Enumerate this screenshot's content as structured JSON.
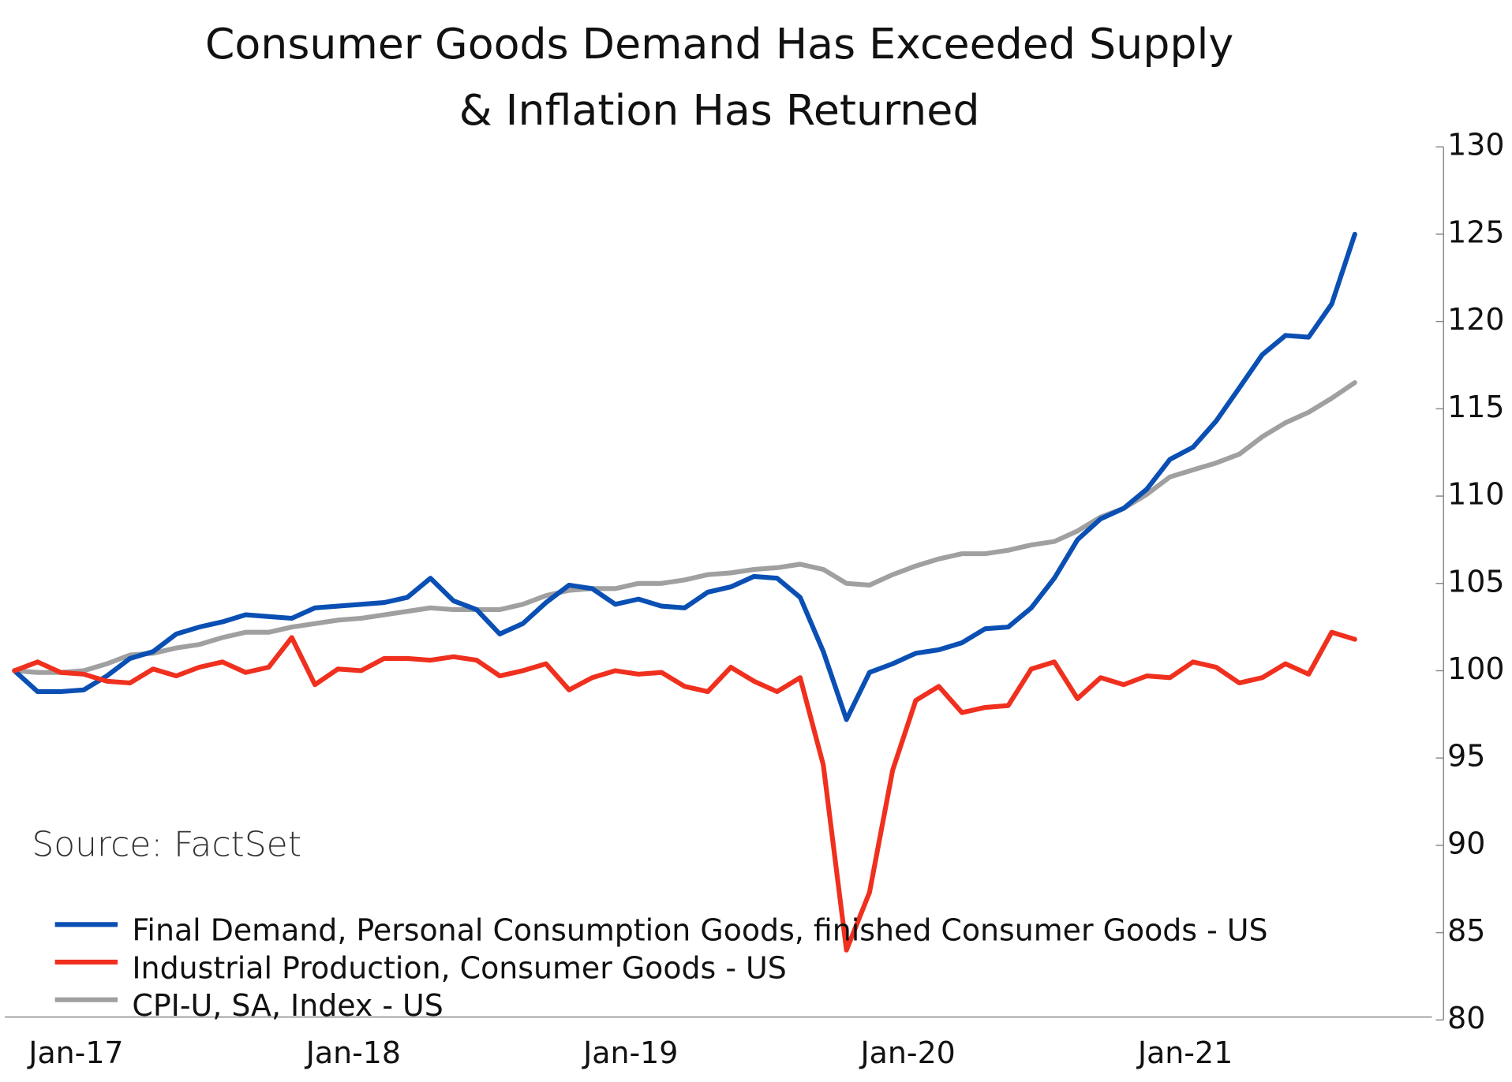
{
  "chart_data": {
    "type": "line",
    "title": [
      "Consumer Goods Demand Has Exceeded Supply",
      "& Inflation Has Returned"
    ],
    "source": "Source: FactSet",
    "categories": [
      null,
      null,
      null,
      "Jan-17",
      null,
      null,
      null,
      null,
      null,
      null,
      null,
      null,
      null,
      null,
      null,
      "Jan-18",
      null,
      null,
      null,
      null,
      null,
      null,
      null,
      null,
      null,
      null,
      null,
      "Jan-19",
      null,
      null,
      null,
      null,
      null,
      null,
      null,
      null,
      null,
      null,
      null,
      "Jan-20",
      null,
      null,
      null,
      null,
      null,
      null,
      null,
      null,
      null,
      null,
      null,
      "Jan-21",
      null,
      null,
      null,
      null,
      null,
      null,
      null
    ],
    "series": [
      {
        "name": "Final Demand, Personal Consumption Goods, finished Consumer Goods - US",
        "color": "#0a4fb3",
        "values": [
          100,
          98.8,
          98.8,
          98.9,
          99.7,
          100.7,
          101.1,
          102.1,
          102.5,
          102.8,
          103.2,
          103.1,
          103,
          103.6,
          103.7,
          103.8,
          103.9,
          104.2,
          105.3,
          104,
          103.5,
          102.1,
          102.7,
          103.9,
          104.9,
          104.7,
          103.8,
          104.1,
          103.7,
          103.6,
          104.5,
          104.8,
          105.4,
          105.3,
          104.2,
          101.1,
          97.2,
          99.9,
          100.4,
          101,
          101.2,
          101.6,
          102.4,
          102.5,
          103.6,
          105.3,
          107.5,
          108.7,
          109.3,
          110.4,
          112.1,
          112.8,
          114.3,
          116.2,
          118.1,
          119.2,
          119.1,
          121,
          125
        ]
      },
      {
        "name": "Industrial Production, Consumer Goods - US",
        "color": "#f0301e",
        "values": [
          100,
          100.5,
          99.9,
          99.8,
          99.4,
          99.3,
          100.1,
          99.7,
          100.2,
          100.5,
          99.9,
          100.2,
          101.9,
          99.2,
          100.1,
          100,
          100.7,
          100.7,
          100.6,
          100.8,
          100.6,
          99.7,
          100,
          100.4,
          98.9,
          99.6,
          100,
          99.8,
          99.9,
          99.1,
          98.8,
          100.2,
          99.4,
          98.8,
          99.6,
          94.6,
          84,
          87.3,
          94.3,
          98.3,
          99.1,
          97.6,
          97.9,
          98,
          100.1,
          100.5,
          98.4,
          99.6,
          99.2,
          99.7,
          99.6,
          100.5,
          100.2,
          99.3,
          99.6,
          100.4,
          99.8,
          102.2,
          101.8
        ]
      },
      {
        "name": "CPI-U, SA, Index - US",
        "color": "#a0a0a0",
        "values": [
          100,
          99.9,
          99.9,
          100,
          100.4,
          100.9,
          101,
          101.3,
          101.5,
          101.9,
          102.2,
          102.2,
          102.5,
          102.7,
          102.9,
          103,
          103.2,
          103.4,
          103.6,
          103.5,
          103.5,
          103.5,
          103.8,
          104.3,
          104.6,
          104.7,
          104.7,
          105,
          105,
          105.2,
          105.5,
          105.6,
          105.8,
          105.9,
          106.1,
          105.8,
          105,
          104.9,
          105.5,
          106,
          106.4,
          106.7,
          106.7,
          106.9,
          107.2,
          107.4,
          108,
          108.8,
          109.3,
          110.1,
          111.1,
          111.5,
          111.9,
          112.4,
          113.4,
          114.2,
          114.8,
          115.6,
          116.5
        ]
      }
    ],
    "ylim": [
      80,
      130
    ],
    "yticks": [
      80,
      85,
      90,
      95,
      100,
      105,
      110,
      115,
      120,
      125,
      130
    ],
    "y_axis_side": "right",
    "legend": "lower left",
    "grid": false
  }
}
